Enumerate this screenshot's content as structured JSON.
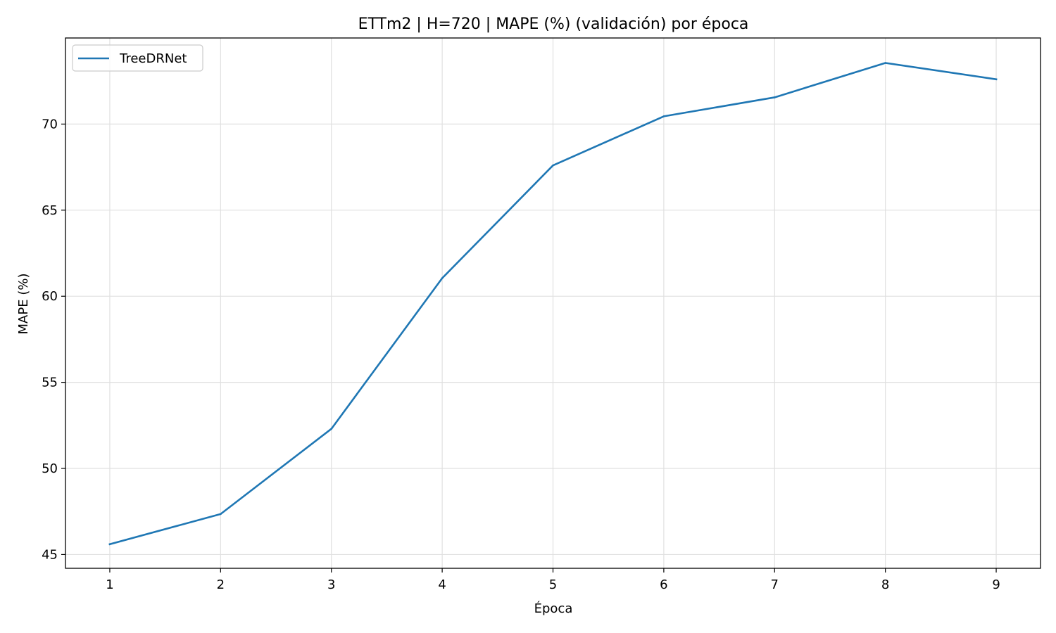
{
  "chart_data": {
    "type": "line",
    "title": "ETTm2 | H=720 | MAPE (%) (validación) por época",
    "xlabel": "Época",
    "ylabel": "MAPE (%)",
    "x": [
      1,
      2,
      3,
      4,
      5,
      6,
      7,
      8,
      9
    ],
    "xticks": [
      1,
      2,
      3,
      4,
      5,
      6,
      7,
      8,
      9
    ],
    "yticks": [
      45,
      50,
      55,
      60,
      65,
      70
    ],
    "xlim": [
      0.6,
      9.4
    ],
    "ylim": [
      44.2,
      75.0
    ],
    "grid": true,
    "legend_position": "top-left",
    "series": [
      {
        "name": "TreeDRNet",
        "color": "#1f77b4",
        "values": [
          45.6,
          47.35,
          52.3,
          61.05,
          67.6,
          70.45,
          71.55,
          73.55,
          72.6
        ]
      }
    ]
  }
}
